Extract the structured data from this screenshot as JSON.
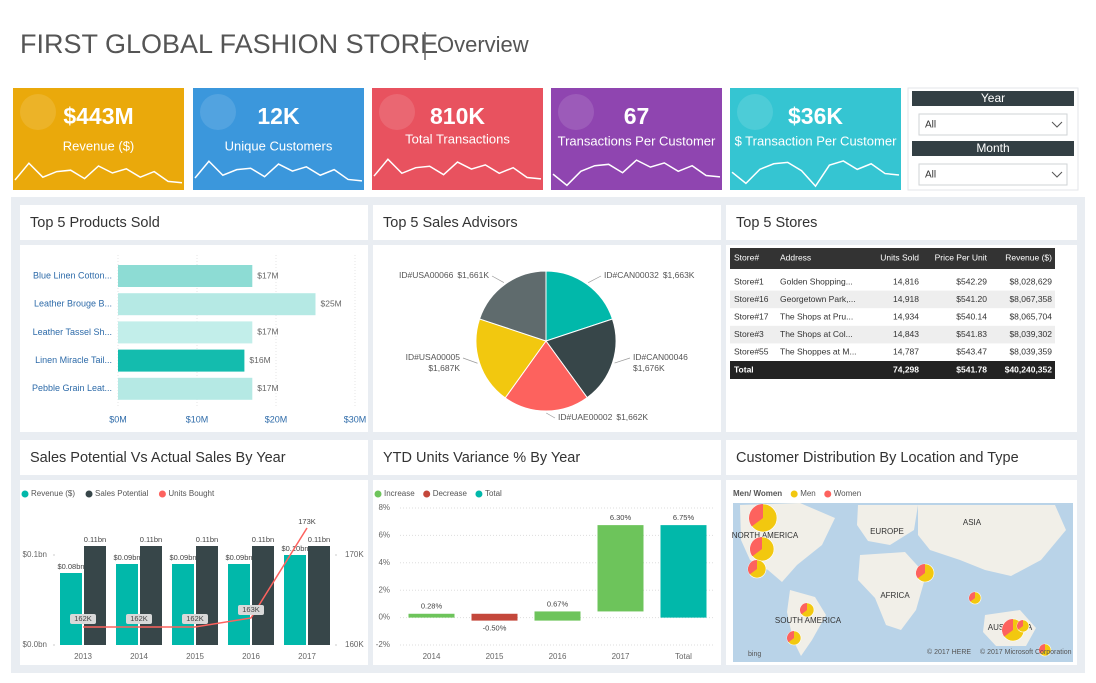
{
  "header": {
    "title": "FIRST GLOBAL FASHION STORE",
    "subtitle": "Overview"
  },
  "kpis": [
    {
      "value": "$443M",
      "label": "Revenue ($)",
      "color": "#eaa90b"
    },
    {
      "value": "12K",
      "label": "Unique Customers",
      "color": "#3b97dc"
    },
    {
      "value": "810K",
      "label": "Total Transactions",
      "color": "#e8525f"
    },
    {
      "value": "67",
      "label": "Transactions Per Customer",
      "color": "#8f45b0"
    },
    {
      "value": "$36K",
      "label": "$ Transaction Per Customer",
      "color": "#35c5d2"
    }
  ],
  "slicers": [
    {
      "label": "Year",
      "selection": "All"
    },
    {
      "label": "Month",
      "selection": "All"
    }
  ],
  "chart_data": [
    {
      "type": "hbar",
      "title": "Top 5 Products Sold",
      "categories": [
        "Blue Linen Cotton...",
        "Leather Brouge B...",
        "Leather Tassel Sh...",
        "Linen Miracle Tail...",
        "Pebble Grain Leat..."
      ],
      "values": [
        17,
        25,
        17,
        16,
        17
      ],
      "value_labels": [
        "$17M",
        "$25M",
        "$17M",
        "$16M",
        "$17M"
      ],
      "colors": [
        "#8ddcd4",
        "#b5e9e4",
        "#c2eeea",
        "#14bcae",
        "#b5e9e4"
      ],
      "xlim": [
        0,
        30
      ],
      "xticks": [
        {
          "value": 0,
          "label": "$0M"
        },
        {
          "value": 10,
          "label": "$10M"
        },
        {
          "value": 20,
          "label": "$20M"
        },
        {
          "value": 30,
          "label": "$30M"
        }
      ]
    },
    {
      "type": "pie",
      "title": "Top 5 Sales Advisors",
      "categories": [
        "ID#CAN00032",
        "ID#CAN00046",
        "ID#UAE00002",
        "ID#USA00005",
        "ID#USA00066"
      ],
      "values": [
        1663,
        1676,
        1662,
        1687,
        1661
      ],
      "value_labels": [
        "$1,663K",
        "$1,676K",
        "$1,662K",
        "$1,687K",
        "$1,661K"
      ],
      "colors": [
        "#01b8aa",
        "#374649",
        "#fd625e",
        "#f2c80f",
        "#5f6b6d"
      ]
    },
    {
      "type": "combo",
      "title": "Sales Potential Vs Actual Sales By Year",
      "categories": [
        "2013",
        "2014",
        "2015",
        "2016",
        "2017"
      ],
      "series": [
        {
          "name": "Revenue ($)",
          "color": "#01b8aa",
          "values": [
            0.08,
            0.09,
            0.09,
            0.09,
            0.1
          ],
          "value_labels": [
            "$0.08bn",
            "$0.09bn",
            "$0.09bn",
            "$0.09bn",
            "$0.10bn"
          ]
        },
        {
          "name": "Sales Potential",
          "color": "#374649",
          "values": [
            0.11,
            0.11,
            0.11,
            0.11,
            0.11
          ],
          "value_labels": [
            "0.11bn",
            "0.11bn",
            "0.11bn",
            "0.11bn",
            "0.11bn"
          ]
        },
        {
          "name": "Units Bought",
          "color": "#fd625e",
          "axis": "y2",
          "values": [
            162,
            162,
            162,
            163,
            173
          ],
          "value_labels": [
            "162K",
            "162K",
            "162K",
            "163K",
            "173K"
          ]
        }
      ],
      "ylim": [
        0,
        0.15
      ],
      "yticks": [
        {
          "value": 0,
          "label": "$0.0bn"
        },
        {
          "value": 0.1,
          "label": "$0.1bn"
        }
      ],
      "y2lim": [
        160,
        175
      ],
      "y2ticks": [
        {
          "value": 160,
          "label": "160K"
        },
        {
          "value": 170,
          "label": "170K"
        }
      ]
    },
    {
      "type": "waterfall",
      "title": "YTD Units Variance % By Year",
      "legend": [
        {
          "name": "Increase",
          "color": "#6dc45b"
        },
        {
          "name": "Decrease",
          "color": "#c4473b"
        },
        {
          "name": "Total",
          "color": "#01b8aa"
        }
      ],
      "categories": [
        "2014",
        "2015",
        "2016",
        "2017",
        "Total"
      ],
      "values": [
        0.28,
        -0.5,
        0.67,
        6.3,
        6.75
      ],
      "value_labels": [
        "0.28%",
        "-0.50%",
        "0.67%",
        "6.30%",
        "6.75%"
      ],
      "ylim": [
        -2,
        8
      ],
      "yticks": [
        {
          "value": -2,
          "label": "-2%"
        },
        {
          "value": 0,
          "label": "0%"
        },
        {
          "value": 2,
          "label": "2%"
        },
        {
          "value": 4,
          "label": "4%"
        },
        {
          "value": 6,
          "label": "6%"
        },
        {
          "value": 8,
          "label": "8%"
        }
      ],
      "grid": true
    },
    {
      "type": "map",
      "title": "Customer Distribution By Location and Type",
      "legend_title": "Men/ Women",
      "series": [
        {
          "name": "Men",
          "color": "#f2c80f"
        },
        {
          "name": "Women",
          "color": "#fd625e"
        }
      ],
      "regions": [
        "NORTH AMERICA",
        "EUROPE",
        "ASIA",
        "AFRICA",
        "SOUTH AMERICA",
        "AUSTRALIA"
      ],
      "attribution": [
        "bing",
        "© 2017 HERE",
        "© 2017 Microsoft Corporation"
      ]
    }
  ],
  "table": {
    "title": "Top 5 Stores",
    "columns": [
      "Store#",
      "Address",
      "Units Sold",
      "Price Per Unit",
      "Revenue ($)"
    ],
    "rows": [
      [
        "Store#1",
        "Golden Shopping...",
        "14,816",
        "$542.29",
        "$8,028,629"
      ],
      [
        "Store#16",
        "Georgetown Park,...",
        "14,918",
        "$541.20",
        "$8,067,358"
      ],
      [
        "Store#17",
        "The Shops at Pru...",
        "14,934",
        "$540.14",
        "$8,065,704"
      ],
      [
        "Store#3",
        "The Shops at Col...",
        "14,843",
        "$541.83",
        "$8,039,302"
      ],
      [
        "Store#55",
        "The Shoppes at M...",
        "14,787",
        "$543.47",
        "$8,039,359"
      ]
    ],
    "total": {
      "label": "Total",
      "cells": [
        "74,298",
        "$541.78",
        "$40,240,352"
      ]
    }
  }
}
